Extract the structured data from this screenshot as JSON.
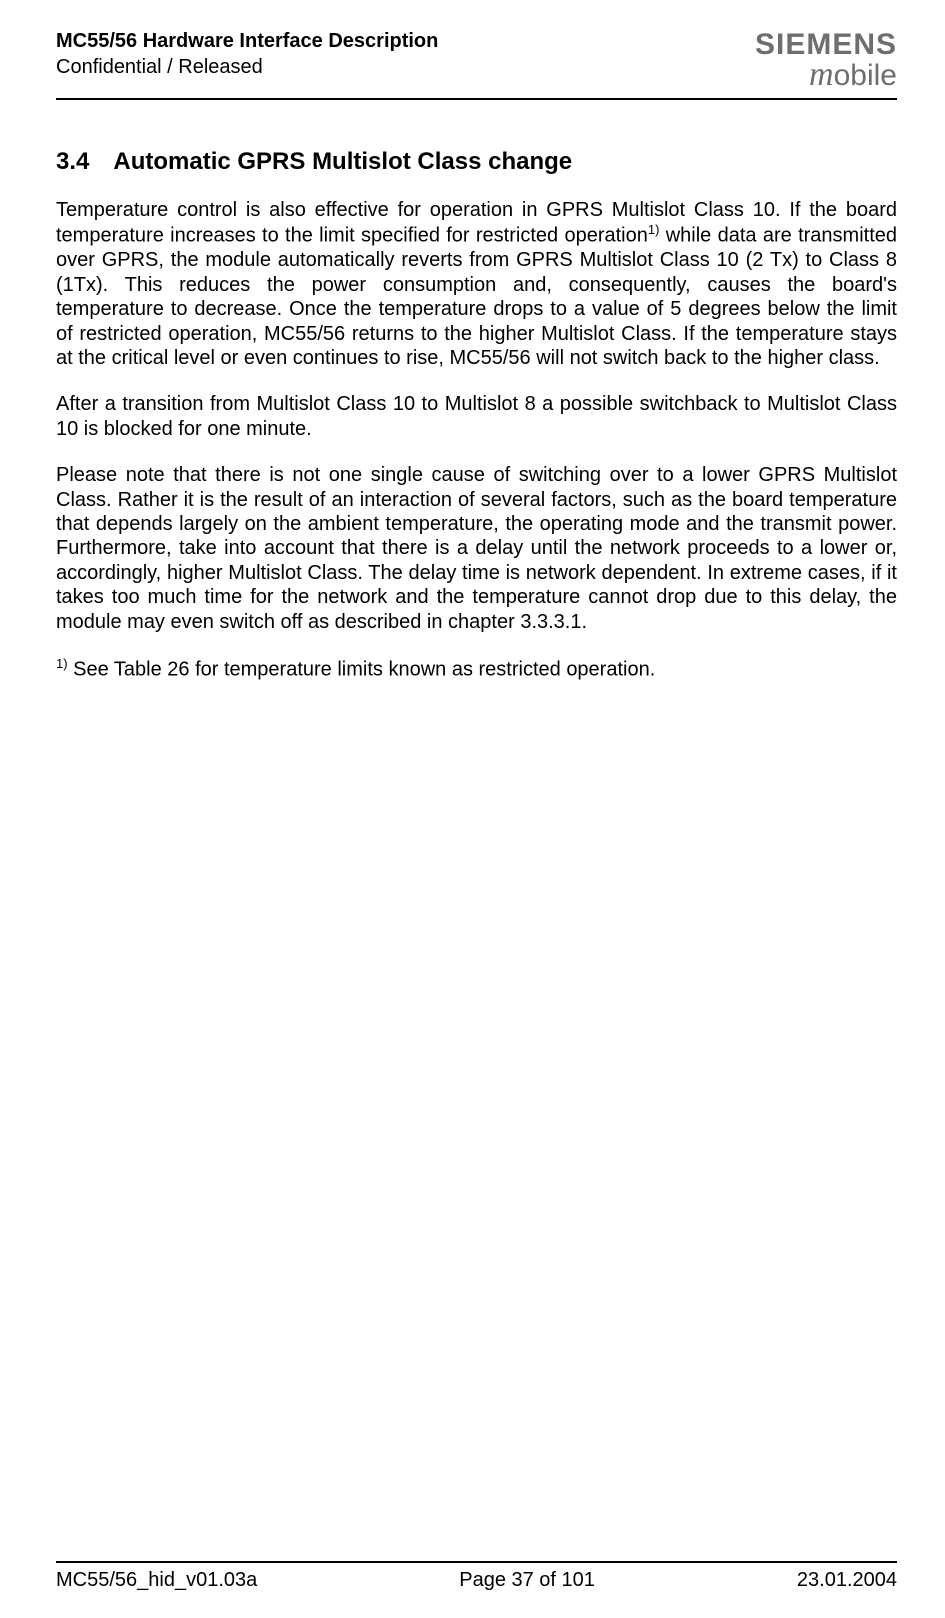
{
  "header": {
    "title": "MC55/56 Hardware Interface Description",
    "status": "Confidential / Released",
    "brand_top": "SIEMENS",
    "brand_bottom_m": "m",
    "brand_bottom_rest": "obile"
  },
  "section": {
    "number": "3.4",
    "title": "Automatic GPRS Multislot Class change"
  },
  "paragraphs": {
    "p1a": "Temperature control is also effective for operation in GPRS Multislot Class 10. If the board temperature increases to the limit specified for restricted operation",
    "p1sup": "1)",
    "p1b": " while data are transmitted over GPRS, the module automatically reverts from GPRS Multislot Class 10 (2 Tx) to Class 8 (1Tx). This reduces the power consumption and, consequently, causes the board's temperature to decrease. Once the temperature drops to a value of 5 degrees below the limit of restricted operation, MC55/56 returns to the higher Multislot Class. If the temperature stays at the critical level or even continues to rise, MC55/56 will not switch back to the higher class.",
    "p2": "After a transition from Multislot Class 10 to Multislot 8 a possible switchback to Multislot Class 10 is blocked for one minute.",
    "p3": "Please note that there is not one single cause of switching over to a lower GPRS Multislot Class. Rather it is the result of an interaction of several factors, such as the board temperature that depends largely on the ambient temperature, the operating mode and the transmit power. Furthermore, take into account that there is a delay until the network proceeds to a lower or, accordingly, higher Multislot Class. The delay time is network dependent. In extreme cases, if it takes too much time for the network and the temperature cannot drop due to this delay, the module may even switch off as described in chapter 3.3.3.1.",
    "footnote_sup": "1)",
    "footnote": " See Table 26 for temperature limits known as restricted operation."
  },
  "footer": {
    "left": "MC55/56_hid_v01.03a",
    "center": "Page 37 of 101",
    "right": "23.01.2004"
  }
}
